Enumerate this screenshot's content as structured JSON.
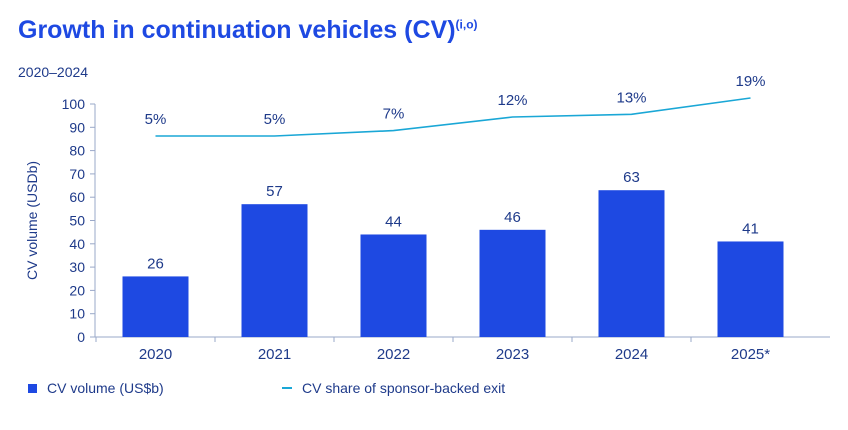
{
  "chart_data": {
    "type": "bar+line",
    "title": "Growth in continuation vehicles (CV)",
    "title_superscript": "(i,o)",
    "subtitle": "2020–2024",
    "ylabel": "CV volume (USDb)",
    "ylim": [
      0,
      100
    ],
    "yticks": [
      "0",
      "10",
      "20",
      "30",
      "40",
      "50",
      "60",
      "70",
      "80",
      "90",
      "100"
    ],
    "categories": [
      "2020",
      "2021",
      "2022",
      "2023",
      "2024",
      "2025*"
    ],
    "series": [
      {
        "name": "CV volume (US$b)",
        "type": "bar",
        "color": "#1e49e2",
        "values": [
          26,
          57,
          44,
          46,
          63,
          41
        ],
        "labels": [
          "26",
          "57",
          "44",
          "46",
          "63",
          "41"
        ]
      },
      {
        "name": "CV share of sponsor-backed exit",
        "type": "line",
        "color": "#1aa7d6",
        "values": [
          5,
          5,
          7,
          12,
          13,
          19
        ],
        "labels": [
          "5%",
          "5%",
          "7%",
          "12%",
          "13%",
          "19%"
        ]
      }
    ]
  },
  "legend": {
    "bar_label": "CV volume (US$b)",
    "line_label": "CV share of sponsor-backed exit"
  }
}
